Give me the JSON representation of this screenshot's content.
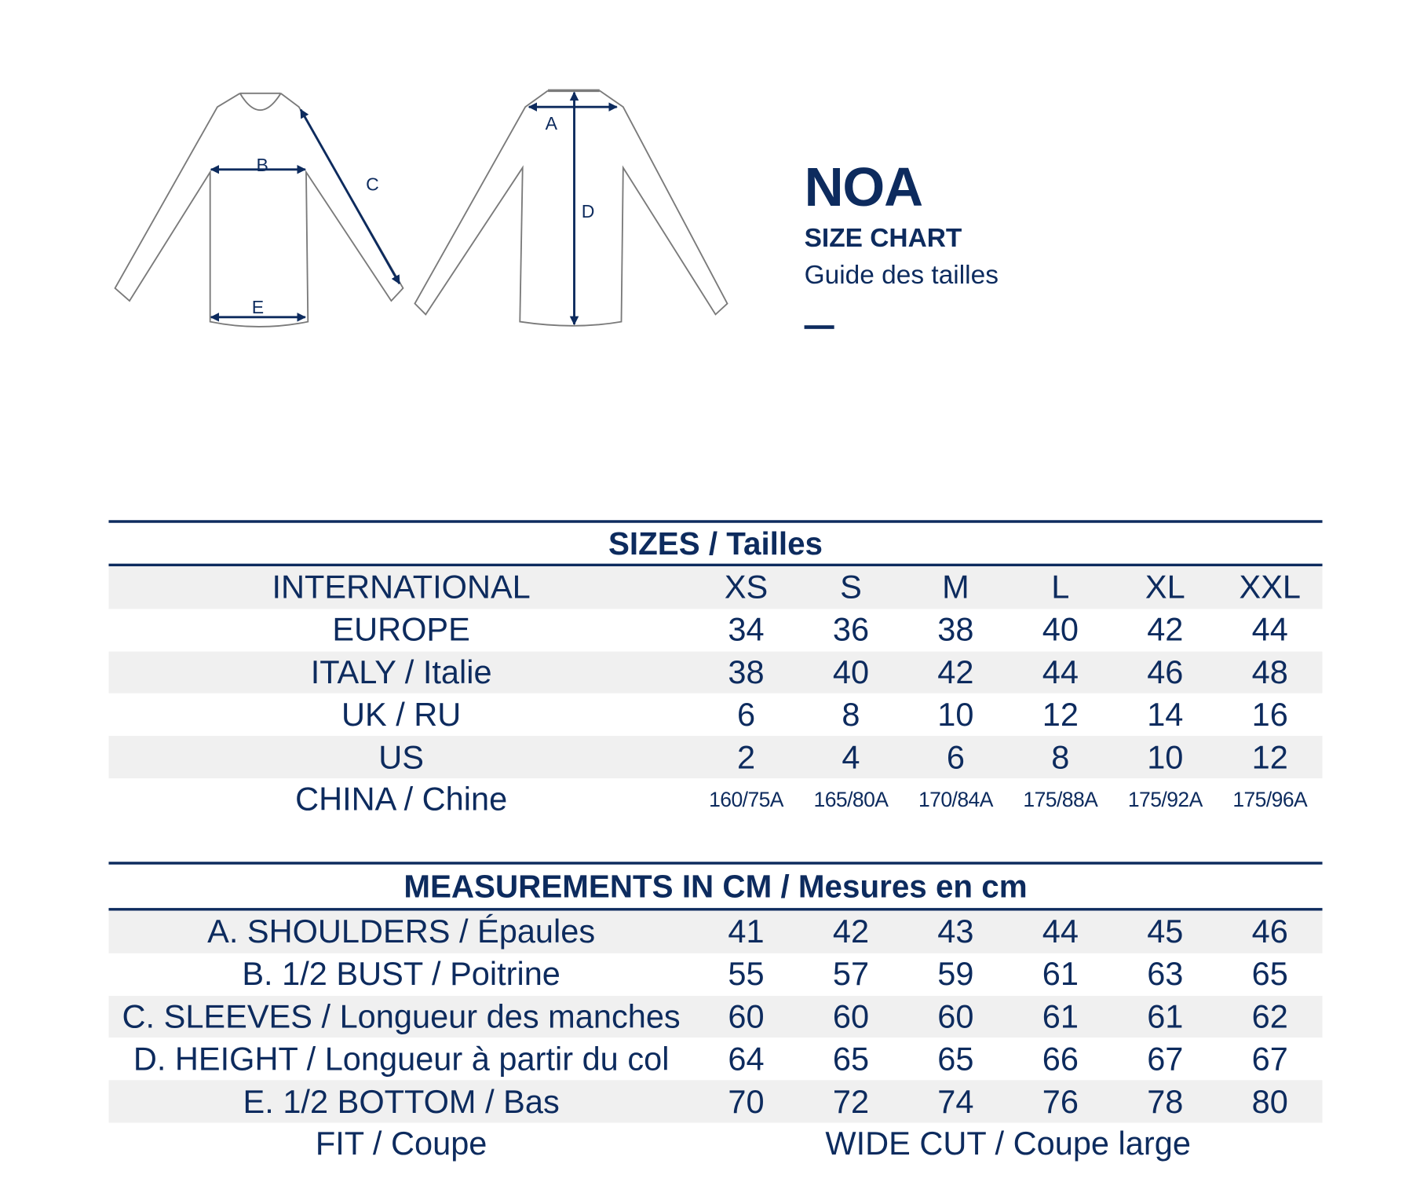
{
  "header": {
    "title": "NOA",
    "subtitle": "SIZE CHART",
    "subtitle_fr": "Guide des tailles"
  },
  "diagram": {
    "labels": {
      "a": "A",
      "b": "B",
      "c": "C",
      "d": "D",
      "e": "E"
    }
  },
  "colors": {
    "primary": "#0d2b5e",
    "row_stripe": "#f0f0f0",
    "garment_outline": "#7a7a7a"
  },
  "sizes": {
    "title": "SIZES / Tailles",
    "rows": [
      {
        "label": "INTERNATIONAL",
        "values": [
          "XS",
          "S",
          "M",
          "L",
          "XL",
          "XXL"
        ]
      },
      {
        "label": "EUROPE",
        "values": [
          "34",
          "36",
          "38",
          "40",
          "42",
          "44"
        ]
      },
      {
        "label": "ITALY / Italie",
        "values": [
          "38",
          "40",
          "42",
          "44",
          "46",
          "48"
        ]
      },
      {
        "label": "UK / RU",
        "values": [
          "6",
          "8",
          "10",
          "12",
          "14",
          "16"
        ]
      },
      {
        "label": "US",
        "values": [
          "2",
          "4",
          "6",
          "8",
          "10",
          "12"
        ]
      },
      {
        "label": "CHINA / Chine",
        "values": [
          "160/75A",
          "165/80A",
          "170/84A",
          "175/88A",
          "175/92A",
          "175/96A"
        ]
      }
    ]
  },
  "measurements": {
    "title": "MEASUREMENTS IN CM / Mesures en cm",
    "rows": [
      {
        "label": "A. SHOULDERS / Épaules",
        "values": [
          "41",
          "42",
          "43",
          "44",
          "45",
          "46"
        ]
      },
      {
        "label": "B. 1/2 BUST / Poitrine",
        "values": [
          "55",
          "57",
          "59",
          "61",
          "63",
          "65"
        ]
      },
      {
        "label": "C. SLEEVES / Longueur des manches",
        "values": [
          "60",
          "60",
          "60",
          "61",
          "61",
          "62"
        ]
      },
      {
        "label": "D. HEIGHT / Longueur à partir du col",
        "values": [
          "64",
          "65",
          "65",
          "66",
          "67",
          "67"
        ]
      },
      {
        "label": "E. 1/2 BOTTOM / Bas",
        "values": [
          "70",
          "72",
          "74",
          "76",
          "78",
          "80"
        ]
      }
    ],
    "fit": {
      "label": "FIT / Coupe",
      "value": "WIDE CUT / Coupe large"
    }
  }
}
